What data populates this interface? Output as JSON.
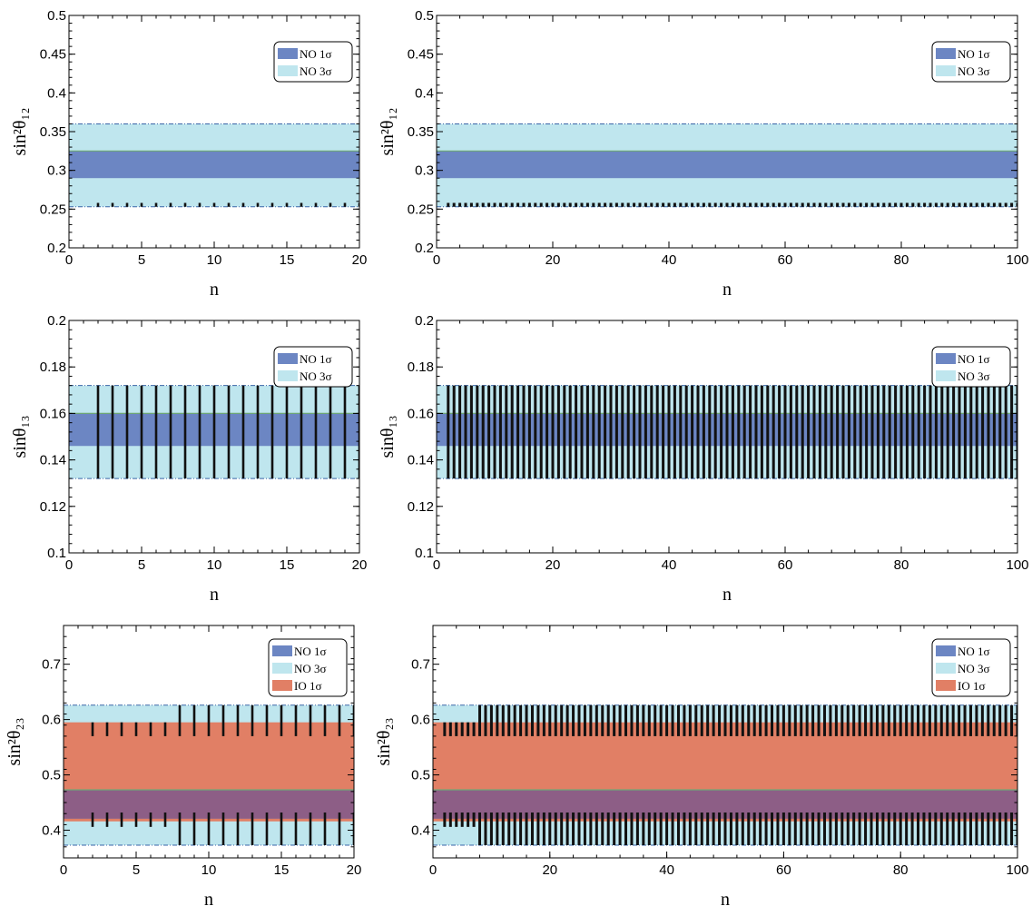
{
  "colors": {
    "no_1sigma": "#6c86c3",
    "no_3sigma": "#bfe6ee",
    "io_1sigma": "#e17f65",
    "overlap": "#8d5e86",
    "band_edge": "#3a66a8",
    "green_line": "#6fa876",
    "vline": "#111111"
  },
  "legend": {
    "no1": "NO 1σ",
    "no3": "NO 3σ",
    "io1": "IO 1σ"
  },
  "chart_data": [
    {
      "id": "s12-n20",
      "type": "band-plot",
      "xlabel": "n",
      "ylabel": "sin²θ₁₂",
      "xlim": [
        0,
        20
      ],
      "ylim": [
        0.2,
        0.5
      ],
      "xticks": [
        "0",
        "5",
        "10",
        "15",
        "20"
      ],
      "yticks": [
        "0.2",
        "0.25",
        "0.3",
        "0.35",
        "0.4",
        "0.45",
        "0.5"
      ],
      "yvals": [
        0.2,
        0.25,
        0.3,
        0.35,
        0.4,
        0.45,
        0.5
      ],
      "bands": {
        "no3": [
          0.253,
          0.36
        ],
        "no1": [
          0.29,
          0.325
        ]
      },
      "vline_n": [
        2,
        20
      ],
      "vline_range": [
        0.253,
        0.258
      ],
      "legend": [
        "no1",
        "no3"
      ]
    },
    {
      "id": "s12-n100",
      "type": "band-plot",
      "xlabel": "n",
      "ylabel": "sin²θ₁₂",
      "xlim": [
        0,
        100
      ],
      "ylim": [
        0.2,
        0.5
      ],
      "xticks": [
        "0",
        "20",
        "40",
        "60",
        "80",
        "100"
      ],
      "yticks": [
        "0.2",
        "0.25",
        "0.3",
        "0.35",
        "0.4",
        "0.45",
        "0.5"
      ],
      "yvals": [
        0.2,
        0.25,
        0.3,
        0.35,
        0.4,
        0.45,
        0.5
      ],
      "bands": {
        "no3": [
          0.253,
          0.36
        ],
        "no1": [
          0.29,
          0.325
        ]
      },
      "vline_n": [
        2,
        100
      ],
      "vline_range": [
        0.253,
        0.258
      ],
      "legend": [
        "no1",
        "no3"
      ]
    },
    {
      "id": "s13-n20",
      "type": "band-plot",
      "xlabel": "n",
      "ylabel": "sinθ₁₃",
      "xlim": [
        0,
        20
      ],
      "ylim": [
        0.1,
        0.2
      ],
      "xticks": [
        "0",
        "5",
        "10",
        "15",
        "20"
      ],
      "yticks": [
        "0.1",
        "0.12",
        "0.14",
        "0.16",
        "0.18",
        "0.2"
      ],
      "yvals": [
        0.1,
        0.12,
        0.14,
        0.16,
        0.18,
        0.2
      ],
      "bands": {
        "no3": [
          0.132,
          0.172
        ],
        "no1": [
          0.146,
          0.16
        ]
      },
      "vline_n": [
        2,
        20
      ],
      "vline_range": [
        0.132,
        0.172
      ],
      "legend": [
        "no1",
        "no3"
      ]
    },
    {
      "id": "s13-n100",
      "type": "band-plot",
      "xlabel": "n",
      "ylabel": "sinθ₁₃",
      "xlim": [
        0,
        100
      ],
      "ylim": [
        0.1,
        0.2
      ],
      "xticks": [
        "0",
        "20",
        "40",
        "60",
        "80",
        "100"
      ],
      "yticks": [
        "0.1",
        "0.12",
        "0.14",
        "0.16",
        "0.18",
        "0.2"
      ],
      "yvals": [
        0.1,
        0.12,
        0.14,
        0.16,
        0.18,
        0.2
      ],
      "bands": {
        "no3": [
          0.132,
          0.172
        ],
        "no1": [
          0.146,
          0.16
        ]
      },
      "vline_n": [
        2,
        100
      ],
      "vline_range": [
        0.132,
        0.172
      ],
      "legend": [
        "no1",
        "no3"
      ]
    },
    {
      "id": "s23-n20",
      "type": "band-plot",
      "xlabel": "n",
      "ylabel": "sin²θ₂₃",
      "xlim": [
        0,
        20
      ],
      "ylim": [
        0.35,
        0.77
      ],
      "xticks": [
        "0",
        "5",
        "10",
        "15",
        "20"
      ],
      "yticks": [
        "0.4",
        "0.5",
        "0.6",
        "0.7"
      ],
      "yvals": [
        0.4,
        0.5,
        0.6,
        0.7
      ],
      "bands": {
        "no3": [
          0.373,
          0.626
        ],
        "no1": [
          0.421,
          0.473
        ],
        "io1": [
          0.416,
          0.595
        ]
      },
      "vline_n": [
        2,
        20
      ],
      "vline_ranges": [
        [
          0.406,
          0.432
        ],
        [
          0.57,
          0.595
        ]
      ],
      "vline_ranges_late": [
        [
          0.373,
          0.432
        ],
        [
          0.57,
          0.626
        ]
      ],
      "late_start": 8,
      "legend": [
        "no1",
        "no3",
        "io1"
      ]
    },
    {
      "id": "s23-n100",
      "type": "band-plot",
      "xlabel": "n",
      "ylabel": "sin²θ₂₃",
      "xlim": [
        0,
        100
      ],
      "ylim": [
        0.35,
        0.77
      ],
      "xticks": [
        "0",
        "20",
        "40",
        "60",
        "80",
        "100"
      ],
      "yticks": [
        "0.4",
        "0.5",
        "0.6",
        "0.7"
      ],
      "yvals": [
        0.4,
        0.5,
        0.6,
        0.7
      ],
      "bands": {
        "no3": [
          0.373,
          0.626
        ],
        "no1": [
          0.421,
          0.473
        ],
        "io1": [
          0.416,
          0.595
        ]
      },
      "vline_n": [
        2,
        100
      ],
      "vline_ranges": [
        [
          0.406,
          0.432
        ],
        [
          0.57,
          0.595
        ]
      ],
      "vline_ranges_late": [
        [
          0.373,
          0.432
        ],
        [
          0.57,
          0.626
        ]
      ],
      "late_start": 8,
      "legend": [
        "no1",
        "no3",
        "io1"
      ]
    }
  ]
}
